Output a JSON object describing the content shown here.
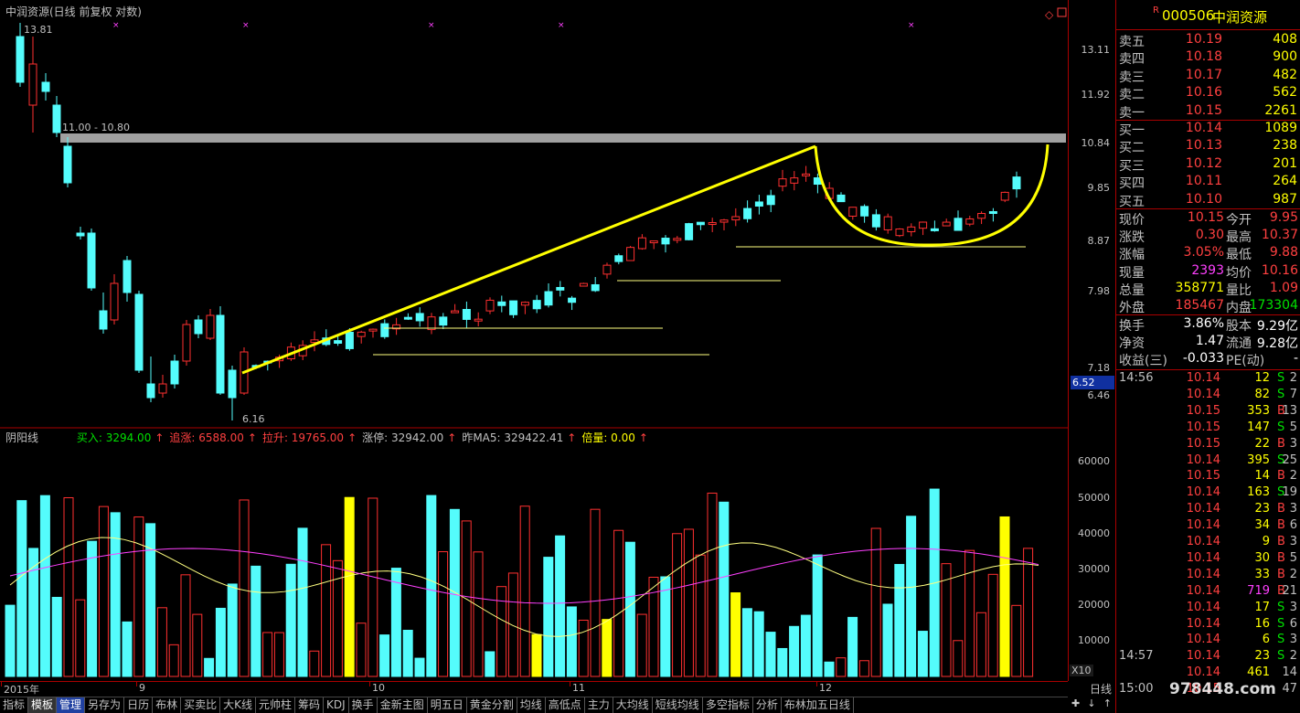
{
  "title": "中润资源(日线 前复权 对数)",
  "price_axis": [
    "13.11",
    "11.92",
    "10.84",
    "9.85",
    "8.87",
    "7.98",
    "7.18",
    "6.46"
  ],
  "current_price_marker": "6.52",
  "volume_axis": [
    "60000",
    "50000",
    "40000",
    "30000",
    "20000",
    "10000"
  ],
  "volume_unit": "X10",
  "annotations": {
    "high_label": "13.81",
    "low_label": "6.16",
    "resistance_label": "11.00 - 10.80"
  },
  "indicator": {
    "name": "阴阳线",
    "items": [
      {
        "label": "买入: 3294.00",
        "color": "#00e000"
      },
      {
        "label": "追涨: 6588.00",
        "color": "#ff4040"
      },
      {
        "label": "拉升: 19765.00",
        "color": "#ff4040"
      },
      {
        "label": "涨停: 32942.00",
        "color": "#c0c0c0"
      },
      {
        "label": "昨MA5: 329422.41",
        "color": "#c0c0c0"
      },
      {
        "label": "倍量: 0.00",
        "color": "#ffff00"
      }
    ]
  },
  "time_axis": [
    "2015年",
    "9",
    "10",
    "11",
    "12"
  ],
  "toolbar": [
    "指标",
    "模板",
    "管理",
    "另存为",
    "日历",
    "布林",
    "买卖比",
    "大K线",
    "元帅柱",
    "筹码",
    "KDJ",
    "换手",
    "金新主图",
    "明五日",
    "黄金分割",
    "均线",
    "高低点",
    "主力",
    "大均线",
    "短线均线",
    "多空指标",
    "分析",
    "布林加五日线"
  ],
  "period_label": "日线",
  "stock": {
    "code": "000506",
    "name": "中润资源",
    "badge": "R"
  },
  "asks": [
    {
      "label": "卖五",
      "price": "10.19",
      "vol": "408"
    },
    {
      "label": "卖四",
      "price": "10.18",
      "vol": "900"
    },
    {
      "label": "卖三",
      "price": "10.17",
      "vol": "482"
    },
    {
      "label": "卖二",
      "price": "10.16",
      "vol": "562"
    },
    {
      "label": "卖一",
      "price": "10.15",
      "vol": "2261"
    }
  ],
  "bids": [
    {
      "label": "买一",
      "price": "10.14",
      "vol": "1089"
    },
    {
      "label": "买二",
      "price": "10.13",
      "vol": "238"
    },
    {
      "label": "买三",
      "price": "10.12",
      "vol": "201"
    },
    {
      "label": "买四",
      "price": "10.11",
      "vol": "264"
    },
    {
      "label": "买五",
      "price": "10.10",
      "vol": "987"
    }
  ],
  "quote": [
    {
      "l1": "现价",
      "v1": "10.15",
      "c1": "red",
      "l2": "今开",
      "v2": "9.95",
      "c2": "red"
    },
    {
      "l1": "涨跌",
      "v1": "0.30",
      "c1": "red",
      "l2": "最高",
      "v2": "10.37",
      "c2": "red"
    },
    {
      "l1": "涨幅",
      "v1": "3.05%",
      "c1": "red",
      "l2": "最低",
      "v2": "9.88",
      "c2": "red"
    },
    {
      "l1": "现量",
      "v1": "2393",
      "c1": "magenta",
      "l2": "均价",
      "v2": "10.16",
      "c2": "red"
    },
    {
      "l1": "总量",
      "v1": "358771",
      "c1": "yellow",
      "l2": "量比",
      "v2": "1.09",
      "c2": "red"
    },
    {
      "l1": "外盘",
      "v1": "185467",
      "c1": "red",
      "l2": "内盘",
      "v2": "173304",
      "c2": "green"
    }
  ],
  "quote2": [
    {
      "l1": "换手",
      "v1": "3.86%",
      "l2": "股本",
      "v2": "9.29亿"
    },
    {
      "l1": "净资",
      "v1": "1.47",
      "l2": "流通",
      "v2": "9.28亿"
    },
    {
      "l1": "收益(三)",
      "v1": "-0.033",
      "l2": "PE(动)",
      "v2": "-"
    }
  ],
  "ticks": [
    {
      "time": "14:56",
      "price": "10.14",
      "vol": "12",
      "bs": "S",
      "n": "2"
    },
    {
      "time": "",
      "price": "10.14",
      "vol": "82",
      "bs": "S",
      "n": "7"
    },
    {
      "time": "",
      "price": "10.15",
      "vol": "353",
      "bs": "B",
      "n": "13"
    },
    {
      "time": "",
      "price": "10.15",
      "vol": "147",
      "bs": "S",
      "n": "5"
    },
    {
      "time": "",
      "price": "10.15",
      "vol": "22",
      "bs": "B",
      "n": "3"
    },
    {
      "time": "",
      "price": "10.14",
      "vol": "395",
      "bs": "S",
      "n": "25"
    },
    {
      "time": "",
      "price": "10.15",
      "vol": "14",
      "bs": "B",
      "n": "2"
    },
    {
      "time": "",
      "price": "10.14",
      "vol": "163",
      "bs": "S",
      "n": "19"
    },
    {
      "time": "",
      "price": "10.14",
      "vol": "23",
      "bs": "B",
      "n": "3"
    },
    {
      "time": "",
      "price": "10.14",
      "vol": "34",
      "bs": "B",
      "n": "6"
    },
    {
      "time": "",
      "price": "10.14",
      "vol": "9",
      "bs": "B",
      "n": "3"
    },
    {
      "time": "",
      "price": "10.14",
      "vol": "30",
      "bs": "B",
      "n": "5"
    },
    {
      "time": "",
      "price": "10.14",
      "vol": "33",
      "bs": "B",
      "n": "2"
    },
    {
      "time": "",
      "price": "10.14",
      "vol": "719",
      "bs": "B",
      "n": "21"
    },
    {
      "time": "",
      "price": "10.14",
      "vol": "17",
      "bs": "S",
      "n": "3"
    },
    {
      "time": "",
      "price": "10.14",
      "vol": "16",
      "bs": "S",
      "n": "6"
    },
    {
      "time": "",
      "price": "10.14",
      "vol": "6",
      "bs": "S",
      "n": "3"
    },
    {
      "time": "14:57",
      "price": "10.14",
      "vol": "23",
      "bs": "S",
      "n": "2"
    },
    {
      "time": "",
      "price": "10.14",
      "vol": "461",
      "bs": "",
      "n": "14"
    },
    {
      "time": "15:00",
      "price": "10.15",
      "vol": "",
      "bs": "",
      "n": "47"
    }
  ],
  "watermark": "978448.com",
  "colors": {
    "up": "#ff3030",
    "down": "#54fcfc",
    "ma5": "#ffff80",
    "ma10": "#ff40ff",
    "trend": "#ffff00",
    "resistance": "#a0a0a0"
  }
}
